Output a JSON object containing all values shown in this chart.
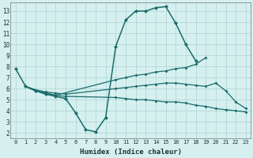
{
  "xlabel": "Humidex (Indice chaleur)",
  "bg_color": "#d6f0f0",
  "grid_color": "#b8dada",
  "line_color": "#1a6b6b",
  "xlim": [
    -0.5,
    23.5
  ],
  "ylim": [
    1.5,
    13.8
  ],
  "xticks": [
    0,
    1,
    2,
    3,
    4,
    5,
    6,
    7,
    8,
    9,
    10,
    11,
    12,
    13,
    14,
    15,
    16,
    17,
    18,
    19,
    20,
    21,
    22,
    23
  ],
  "yticks": [
    2,
    3,
    4,
    5,
    6,
    7,
    8,
    9,
    10,
    11,
    12,
    13
  ],
  "series": [
    {
      "x": [
        0,
        1,
        2,
        3,
        4,
        5,
        6,
        7,
        8,
        9,
        10,
        11,
        12,
        13,
        14,
        15,
        16,
        17,
        18,
        19,
        20,
        21,
        22,
        23
      ],
      "y": [
        7.8,
        6.2,
        5.8,
        5.5,
        5.3,
        5.1,
        3.8,
        2.3,
        2.1,
        3.4,
        9.8,
        12.2,
        13.0,
        13.0,
        13.3,
        13.4,
        11.9,
        10.0,
        8.5,
        null,
        null,
        null,
        null,
        null
      ]
    },
    {
      "x": [
        1,
        2,
        3,
        4,
        10,
        11,
        12,
        13,
        14,
        15,
        16,
        17,
        18,
        19
      ],
      "y": [
        6.2,
        5.8,
        5.6,
        5.4,
        6.8,
        7.0,
        7.2,
        7.3,
        7.5,
        7.6,
        7.8,
        7.9,
        8.2,
        8.8
      ]
    },
    {
      "x": [
        1,
        2,
        3,
        4,
        5,
        10,
        11,
        12,
        13,
        14,
        15,
        16,
        17,
        18,
        19,
        20,
        21,
        22,
        23
      ],
      "y": [
        6.2,
        5.9,
        5.7,
        5.6,
        5.5,
        6.0,
        6.1,
        6.2,
        6.3,
        6.4,
        6.5,
        6.5,
        6.4,
        6.3,
        6.2,
        6.5,
        5.8,
        4.8,
        4.2
      ]
    },
    {
      "x": [
        1,
        2,
        3,
        4,
        5,
        10,
        11,
        12,
        13,
        14,
        15,
        16,
        17,
        18,
        19,
        20,
        21,
        22,
        23
      ],
      "y": [
        6.2,
        5.8,
        5.6,
        5.4,
        5.3,
        5.2,
        5.1,
        5.0,
        5.0,
        4.9,
        4.8,
        4.8,
        4.7,
        4.5,
        4.4,
        4.2,
        4.1,
        4.0,
        3.9
      ]
    }
  ]
}
